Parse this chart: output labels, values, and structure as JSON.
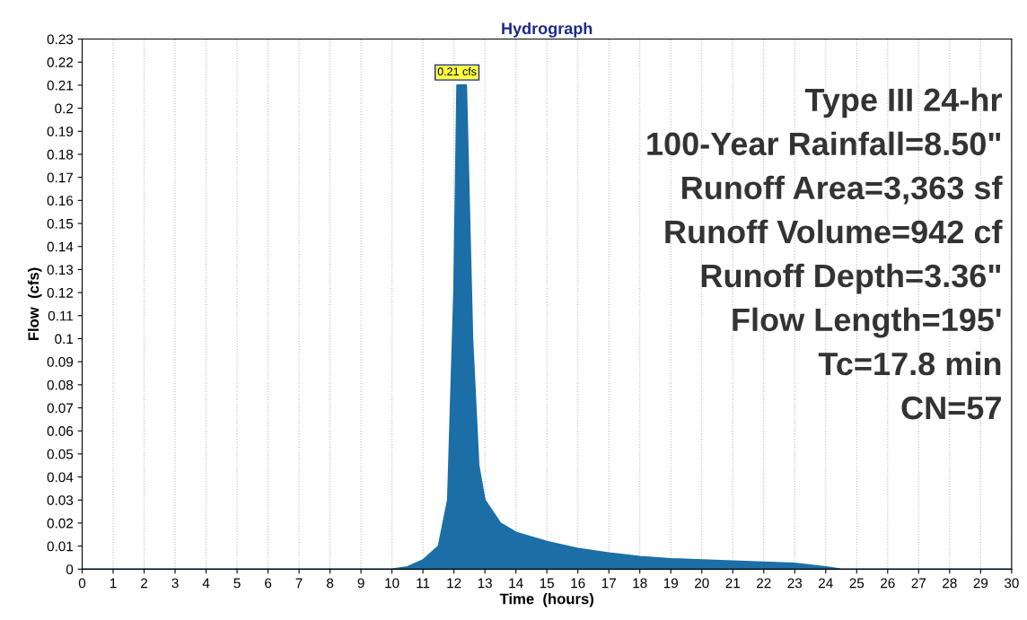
{
  "chart_data": {
    "type": "area",
    "title": "Hydrograph",
    "xlabel": "Time  (hours)",
    "ylabel": "Flow  (cfs)",
    "series": [
      {
        "color": "#1b6fa6",
        "x": [
          0,
          10,
          10.5,
          11,
          11.5,
          11.8,
          12.0,
          12.1,
          12.4,
          12.6,
          12.8,
          13,
          13.5,
          14,
          15,
          16,
          17,
          18,
          19,
          20,
          21,
          22,
          23,
          24,
          24.5,
          30
        ],
        "values": [
          0,
          0,
          0.001,
          0.004,
          0.01,
          0.03,
          0.12,
          0.21,
          0.21,
          0.1,
          0.045,
          0.03,
          0.02,
          0.016,
          0.012,
          0.009,
          0.007,
          0.0055,
          0.0045,
          0.004,
          0.0035,
          0.003,
          0.0025,
          0.001,
          0,
          0
        ]
      }
    ],
    "xlim": [
      0,
      30
    ],
    "xticks": [
      0,
      1,
      2,
      3,
      4,
      5,
      6,
      7,
      8,
      9,
      10,
      11,
      12,
      13,
      14,
      15,
      16,
      17,
      18,
      19,
      20,
      21,
      22,
      23,
      24,
      25,
      26,
      27,
      28,
      29,
      30
    ],
    "ylim": [
      0,
      0.23
    ],
    "yticks": [
      0,
      0.01,
      0.02,
      0.03,
      0.04,
      0.05,
      0.06,
      0.07,
      0.08,
      0.09,
      0.1,
      0.11,
      0.12,
      0.13,
      0.14,
      0.15,
      0.16,
      0.17,
      0.18,
      0.19,
      0.2,
      0.21,
      0.22,
      0.23
    ],
    "grid": "x",
    "annotations": [
      {
        "text": "0.21 cfs",
        "x": 12.1,
        "y": 0.21
      },
      "Type III 24-hr",
      "100-Year Rainfall=8.50\"",
      "Runoff Area=3,363 sf",
      "Runoff Volume=942 cf",
      "Runoff Depth=3.36\"",
      "Flow Length=195'",
      "Tc=17.8 min",
      "CN=57"
    ]
  }
}
